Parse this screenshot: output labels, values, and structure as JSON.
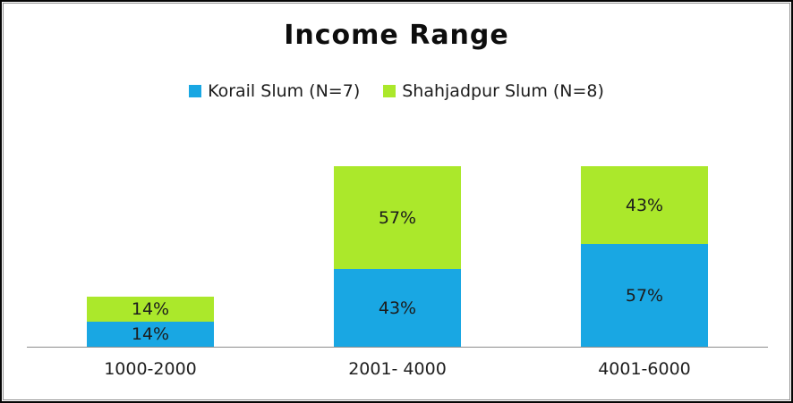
{
  "chart_data": {
    "type": "bar",
    "stacked": true,
    "title": "Income Range",
    "categories": [
      "1000-2000",
      "2001- 4000",
      "4001-6000"
    ],
    "series": [
      {
        "name": "Korail Slum (N=7)",
        "color": "#19A7E3",
        "values": [
          14,
          43,
          57
        ],
        "labels": [
          "14%",
          "43%",
          "57%"
        ]
      },
      {
        "name": "Shahjadpur Slum (N=8)",
        "color": "#ABE82B",
        "values": [
          14,
          57,
          43
        ],
        "labels": [
          "14%",
          "57%",
          "43%"
        ]
      }
    ],
    "xlabel": "",
    "ylabel": "",
    "ylim": [
      0,
      100
    ],
    "grid": false,
    "y_axis_visible": false,
    "legend_position": "top",
    "axis_color": "#8C8C8C",
    "text_color": "#1C1C1C",
    "title_color": "#0D0D0D",
    "background_color": "#FFFFFF",
    "border_outer_color": "#060606",
    "border_inner_color": "#929292"
  }
}
